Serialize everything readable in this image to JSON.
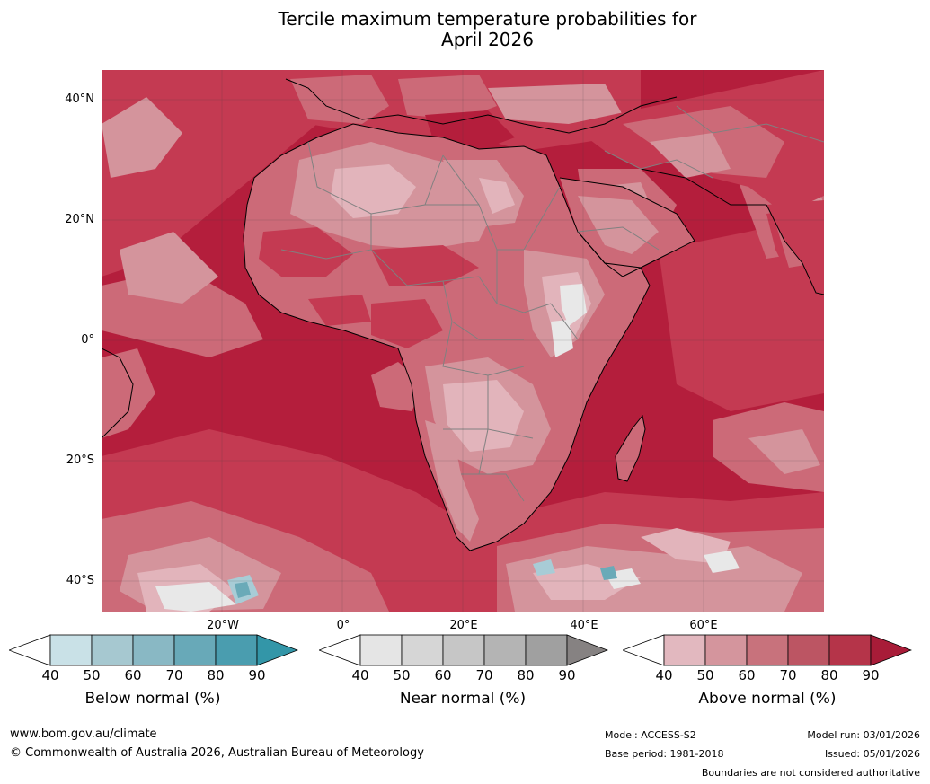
{
  "title": {
    "line1": "Tercile maximum temperature probabilities for",
    "line2": "April 2026"
  },
  "map": {
    "lat_labels": [
      "40°N",
      "20°N",
      "0°",
      "20°S",
      "40°S"
    ],
    "lon_labels": [
      "20°W",
      "0°",
      "20°E",
      "40°E",
      "60°E"
    ],
    "colors": {
      "ocean_above_90": "#b41e3c",
      "above_80": "#c43a52",
      "above_70": "#cc6a78",
      "above_60": "#d4949c",
      "above_50": "#e2b4bb",
      "near_normal": "#e8e8e8",
      "below_50": "#a8ccd6",
      "below_70": "#6aaab8",
      "country_border": "#808080",
      "coastline": "#000000"
    }
  },
  "colorbars": [
    {
      "title": "Below normal (%)",
      "ticks": [
        "40",
        "50",
        "60",
        "70",
        "80",
        "90"
      ],
      "colors": [
        "#ffffff",
        "#c9e1e7",
        "#a6c8d0",
        "#89b8c4",
        "#68a9b8",
        "#4a9daf",
        "#3396a8"
      ]
    },
    {
      "title": "Near normal (%)",
      "ticks": [
        "40",
        "50",
        "60",
        "70",
        "80",
        "90"
      ],
      "colors": [
        "#ffffff",
        "#e5e5e5",
        "#d6d6d6",
        "#c6c6c6",
        "#b4b4b4",
        "#a0a0a0",
        "#868282"
      ]
    },
    {
      "title": "Above normal (%)",
      "ticks": [
        "40",
        "50",
        "60",
        "70",
        "80",
        "90"
      ],
      "colors": [
        "#ffffff",
        "#e2b8bf",
        "#d4959d",
        "#c8727c",
        "#bc5563",
        "#b53449",
        "#a81c38"
      ]
    }
  ],
  "footer": {
    "website": "www.bom.gov.au/climate",
    "copyright": "© Commonwealth of Australia 2026, Australian Bureau of Meteorology",
    "model": "Model: ACCESS-S2",
    "base_period": "Base period: 1981-2018",
    "model_run": "Model run: 03/01/2026",
    "issued": "Issued: 05/01/2026",
    "disclaimer": "Boundaries are not considered authoritative"
  }
}
